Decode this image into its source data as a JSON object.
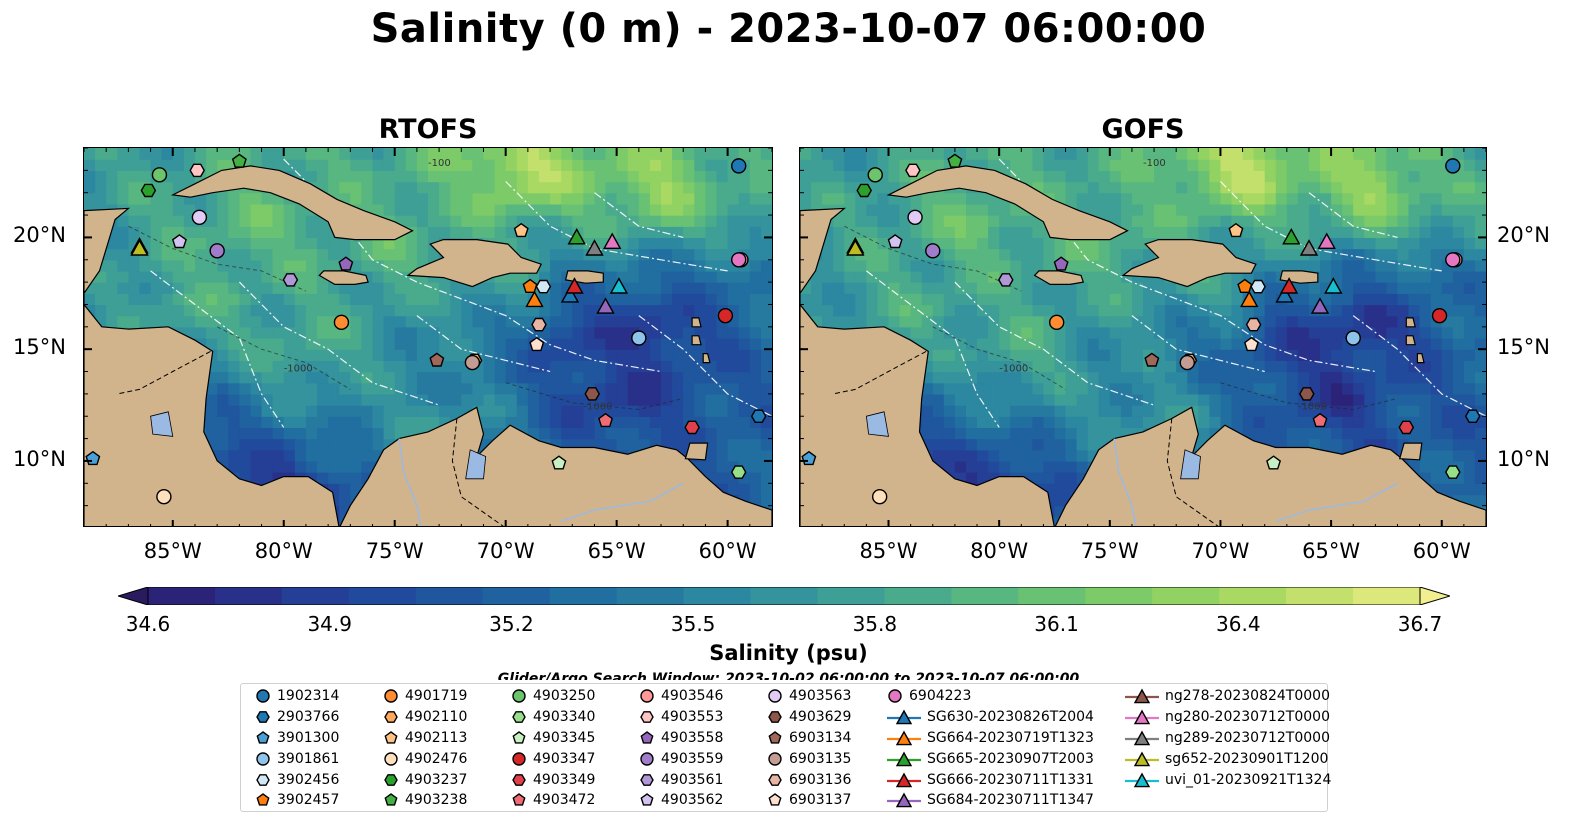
{
  "title": "Salinity (0 m) - 2023-10-07 06:00:00",
  "panels": [
    {
      "id": "rtofs",
      "title": "RTOFS"
    },
    {
      "id": "gofs",
      "title": "GOFS"
    }
  ],
  "map": {
    "lon_range": [
      -89.0,
      -58.0
    ],
    "lat_range": [
      7.0,
      24.0
    ],
    "x_ticks": [
      "85°W",
      "80°W",
      "75°W",
      "70°W",
      "65°W",
      "60°W"
    ],
    "x_tick_lons": [
      -85,
      -80,
      -75,
      -70,
      -65,
      -60
    ],
    "y_ticks": [
      "20°N",
      "15°N",
      "10°N"
    ],
    "y_tick_lats": [
      20,
      15,
      10
    ],
    "land_color": "#d2b48c",
    "lake_color": "#9ab9e3",
    "contour_labels": [
      "-1000",
      "-1000",
      "-100"
    ]
  },
  "colorbar": {
    "label": "Salinity (psu)",
    "min": 34.6,
    "max": 36.7,
    "step": 0.15,
    "ticks": [
      "34.6",
      "34.9",
      "35.2",
      "35.5",
      "35.8",
      "36.1",
      "36.4",
      "36.7"
    ],
    "colors": [
      "#2a1a5e",
      "#2b2377",
      "#29308a",
      "#253e96",
      "#214a9c",
      "#1f569e",
      "#1f629f",
      "#216ea0",
      "#267aa0",
      "#2c87a0",
      "#34939c",
      "#3e9f96",
      "#4aab8c",
      "#58b680",
      "#69c173",
      "#7cca68",
      "#92d262",
      "#aad963",
      "#c3e06c",
      "#dde87c",
      "#f1ef8f"
    ]
  },
  "search_window": "Glider/Argo Search Window: 2023-10-02 06:00:00 to 2023-10-07 06:00:00",
  "legend": [
    {
      "label": "1902314",
      "marker": "circle",
      "color": "#1f77b4"
    },
    {
      "label": "2903766",
      "marker": "hexagon",
      "color": "#1f77b4"
    },
    {
      "label": "3901300",
      "marker": "pentagon",
      "color": "#4a9fd4"
    },
    {
      "label": "3901861",
      "marker": "circle",
      "color": "#8ec4ea"
    },
    {
      "label": "3902456",
      "marker": "hexagon",
      "color": "#d3e8f5"
    },
    {
      "label": "3902457",
      "marker": "pentagon",
      "color": "#ff7f0e"
    },
    {
      "label": "4901719",
      "marker": "circle",
      "color": "#ff8c33"
    },
    {
      "label": "4902110",
      "marker": "hexagon",
      "color": "#ffa95c"
    },
    {
      "label": "4902113",
      "marker": "pentagon",
      "color": "#ffc485"
    },
    {
      "label": "4902476",
      "marker": "circle",
      "color": "#ffe0bd"
    },
    {
      "label": "4903237",
      "marker": "hexagon",
      "color": "#2ca02c"
    },
    {
      "label": "4903238",
      "marker": "pentagon",
      "color": "#43b043"
    },
    {
      "label": "4903250",
      "marker": "circle",
      "color": "#6cc46c"
    },
    {
      "label": "4903340",
      "marker": "hexagon",
      "color": "#98df8a"
    },
    {
      "label": "4903345",
      "marker": "pentagon",
      "color": "#c8f0c0"
    },
    {
      "label": "4903347",
      "marker": "circle",
      "color": "#d62728"
    },
    {
      "label": "4903349",
      "marker": "hexagon",
      "color": "#e0404a"
    },
    {
      "label": "4903472",
      "marker": "pentagon",
      "color": "#f06c75"
    },
    {
      "label": "4903546",
      "marker": "circle",
      "color": "#ff9896"
    },
    {
      "label": "4903553",
      "marker": "hexagon",
      "color": "#ffc4c3"
    },
    {
      "label": "4903558",
      "marker": "pentagon",
      "color": "#9467bd"
    },
    {
      "label": "4903559",
      "marker": "circle",
      "color": "#a07ccb"
    },
    {
      "label": "4903561",
      "marker": "hexagon",
      "color": "#b196d8"
    },
    {
      "label": "4903562",
      "marker": "pentagon",
      "color": "#d2c2f0"
    },
    {
      "label": "4903563",
      "marker": "circle",
      "color": "#e2cbf5"
    },
    {
      "label": "4903629",
      "marker": "hexagon",
      "color": "#8c564b"
    },
    {
      "label": "6903134",
      "marker": "pentagon",
      "color": "#a0675b"
    },
    {
      "label": "6903135",
      "marker": "circle",
      "color": "#c49c94"
    },
    {
      "label": "6903136",
      "marker": "hexagon",
      "color": "#e8b4a4"
    },
    {
      "label": "6903137",
      "marker": "pentagon",
      "color": "#fde0d0"
    },
    {
      "label": "6904223",
      "marker": "circle",
      "color": "#e377c2"
    },
    {
      "label": "SG630-20230826T2004",
      "marker": "triangle-line",
      "color": "#1f77b4"
    },
    {
      "label": "SG664-20230719T1323",
      "marker": "triangle-line",
      "color": "#ff7f0e"
    },
    {
      "label": "SG665-20230907T2003",
      "marker": "triangle-line",
      "color": "#2ca02c"
    },
    {
      "label": "SG666-20230711T1331",
      "marker": "triangle-line",
      "color": "#d62728"
    },
    {
      "label": "SG684-20230711T1347",
      "marker": "triangle-line",
      "color": "#9467bd"
    },
    {
      "label": "ng278-20230824T0000",
      "marker": "triangle-line",
      "color": "#8c564b"
    },
    {
      "label": "ng280-20230712T0000",
      "marker": "triangle-line",
      "color": "#e377c2"
    },
    {
      "label": "ng289-20230712T0000",
      "marker": "triangle-line",
      "color": "#7f7f7f"
    },
    {
      "label": "sg652-20230901T1200",
      "marker": "triangle-line",
      "color": "#bcbd22"
    },
    {
      "label": "uvi_01-20230921T1324",
      "marker": "triangle-line",
      "color": "#17becf"
    }
  ],
  "platforms": [
    {
      "id": "1902314",
      "lon": -59.5,
      "lat": 23.2
    },
    {
      "id": "2903766",
      "lon": -58.6,
      "lat": 12.0
    },
    {
      "id": "3901300",
      "lon": -88.6,
      "lat": 10.1
    },
    {
      "id": "3901861",
      "lon": -64.0,
      "lat": 15.5
    },
    {
      "id": "3902456",
      "lon": -68.3,
      "lat": 17.8
    },
    {
      "id": "3902457",
      "lon": -68.9,
      "lat": 17.8
    },
    {
      "id": "4901719",
      "lon": -77.4,
      "lat": 16.2
    },
    {
      "id": "4902110",
      "lon": -71.4,
      "lat": 14.5
    },
    {
      "id": "4902113",
      "lon": -69.3,
      "lat": 20.3
    },
    {
      "id": "4902476",
      "lon": -85.4,
      "lat": 8.4
    },
    {
      "id": "4903237",
      "lon": -86.1,
      "lat": 22.1
    },
    {
      "id": "4903238",
      "lon": -82.0,
      "lat": 23.4
    },
    {
      "id": "4903250",
      "lon": -85.6,
      "lat": 22.8
    },
    {
      "id": "4903340",
      "lon": -59.5,
      "lat": 9.5
    },
    {
      "id": "4903345",
      "lon": -67.6,
      "lat": 9.9
    },
    {
      "id": "4903347",
      "lon": -60.1,
      "lat": 16.5
    },
    {
      "id": "4903349",
      "lon": -61.6,
      "lat": 11.5
    },
    {
      "id": "4903472",
      "lon": -65.5,
      "lat": 11.8
    },
    {
      "id": "4903546",
      "lon": -59.4,
      "lat": 19.0
    },
    {
      "id": "4903553",
      "lon": -83.9,
      "lat": 23.0
    },
    {
      "id": "4903558",
      "lon": -77.2,
      "lat": 18.8
    },
    {
      "id": "4903559",
      "lon": -83.0,
      "lat": 19.4
    },
    {
      "id": "4903561",
      "lon": -79.7,
      "lat": 18.1
    },
    {
      "id": "4903562",
      "lon": -84.7,
      "lat": 19.8
    },
    {
      "id": "4903563",
      "lon": -83.8,
      "lat": 20.9
    },
    {
      "id": "4903629",
      "lon": -66.1,
      "lat": 13.0
    },
    {
      "id": "6903134",
      "lon": -73.1,
      "lat": 14.5
    },
    {
      "id": "6903135",
      "lon": -71.5,
      "lat": 14.4
    },
    {
      "id": "6903136",
      "lon": -68.5,
      "lat": 16.1
    },
    {
      "id": "6903137",
      "lon": -68.6,
      "lat": 15.2
    },
    {
      "id": "6904223",
      "lon": -59.5,
      "lat": 19.0
    },
    {
      "id": "SG630-20230826T2004",
      "lon": -67.1,
      "lat": 17.4
    },
    {
      "id": "SG664-20230719T1323",
      "lon": -68.7,
      "lat": 17.2
    },
    {
      "id": "SG665-20230907T2003",
      "lon": -66.8,
      "lat": 20.0
    },
    {
      "id": "SG666-20230711T1331",
      "lon": -66.9,
      "lat": 17.8
    },
    {
      "id": "SG684-20230711T1347",
      "lon": -65.5,
      "lat": 16.9
    },
    {
      "id": "ng278-20230824T0000",
      "lon": -86.5,
      "lat": 19.6
    },
    {
      "id": "ng280-20230712T0000",
      "lon": -65.2,
      "lat": 19.8
    },
    {
      "id": "ng289-20230712T0000",
      "lon": -66.0,
      "lat": 19.5
    },
    {
      "id": "sg652-20230901T1200",
      "lon": -86.5,
      "lat": 19.5
    },
    {
      "id": "uvi_01-20230921T1324",
      "lon": -64.9,
      "lat": 17.8
    }
  ]
}
